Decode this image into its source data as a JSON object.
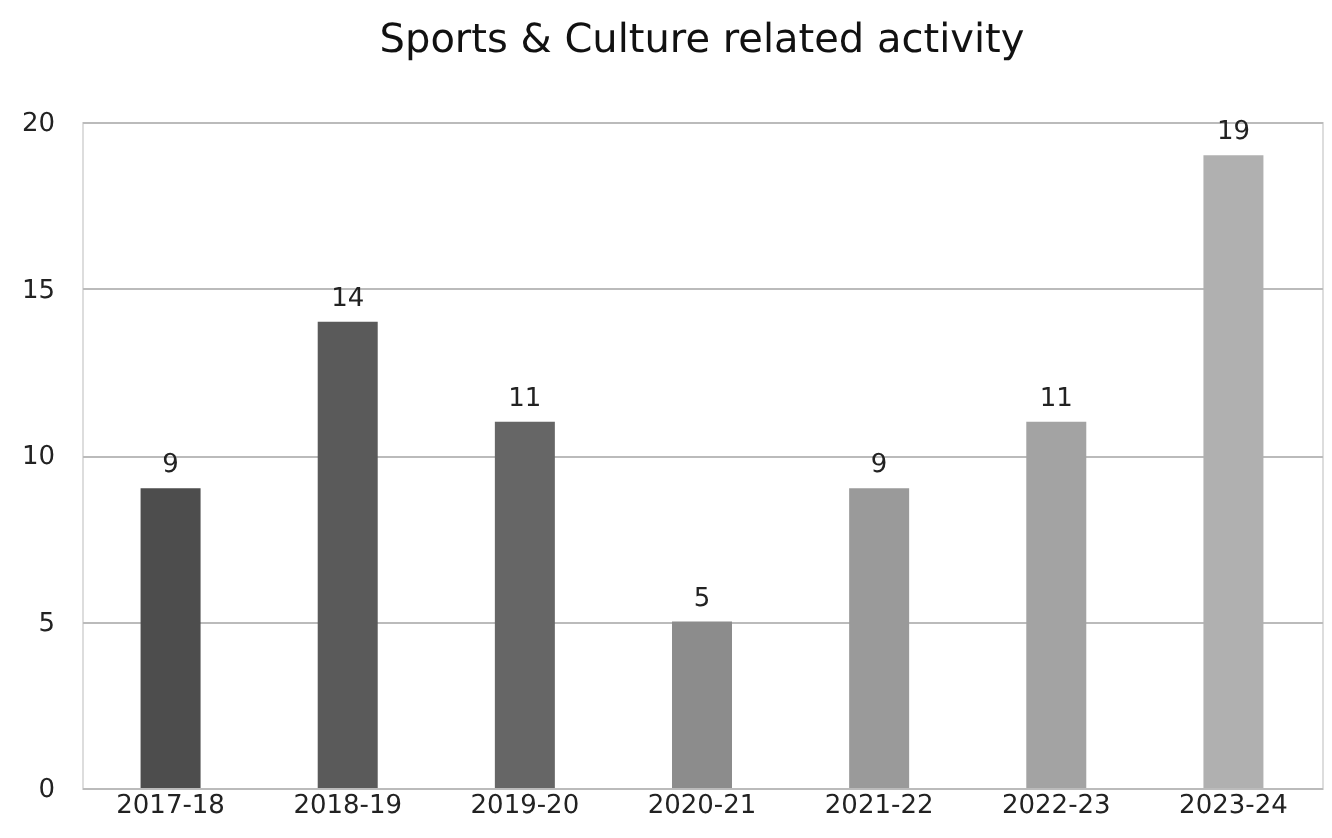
{
  "chart_data": {
    "type": "bar",
    "title": "Sports & Culture related activity",
    "categories": [
      "2017-18",
      "2018-19",
      "2019-20",
      "2020-21",
      "2021-22",
      "2022-23",
      "2023-24"
    ],
    "values": [
      9,
      14,
      11,
      5,
      9,
      11,
      19
    ],
    "colors": [
      "#4d4d4d",
      "#5a5a5a",
      "#666666",
      "#8c8c8c",
      "#9a9a9a",
      "#a3a3a3",
      "#b0b0b0"
    ],
    "ylim": [
      0,
      20
    ],
    "yticks": [
      0,
      5,
      10,
      15,
      20
    ],
    "grid": "y",
    "data_labels": true
  }
}
